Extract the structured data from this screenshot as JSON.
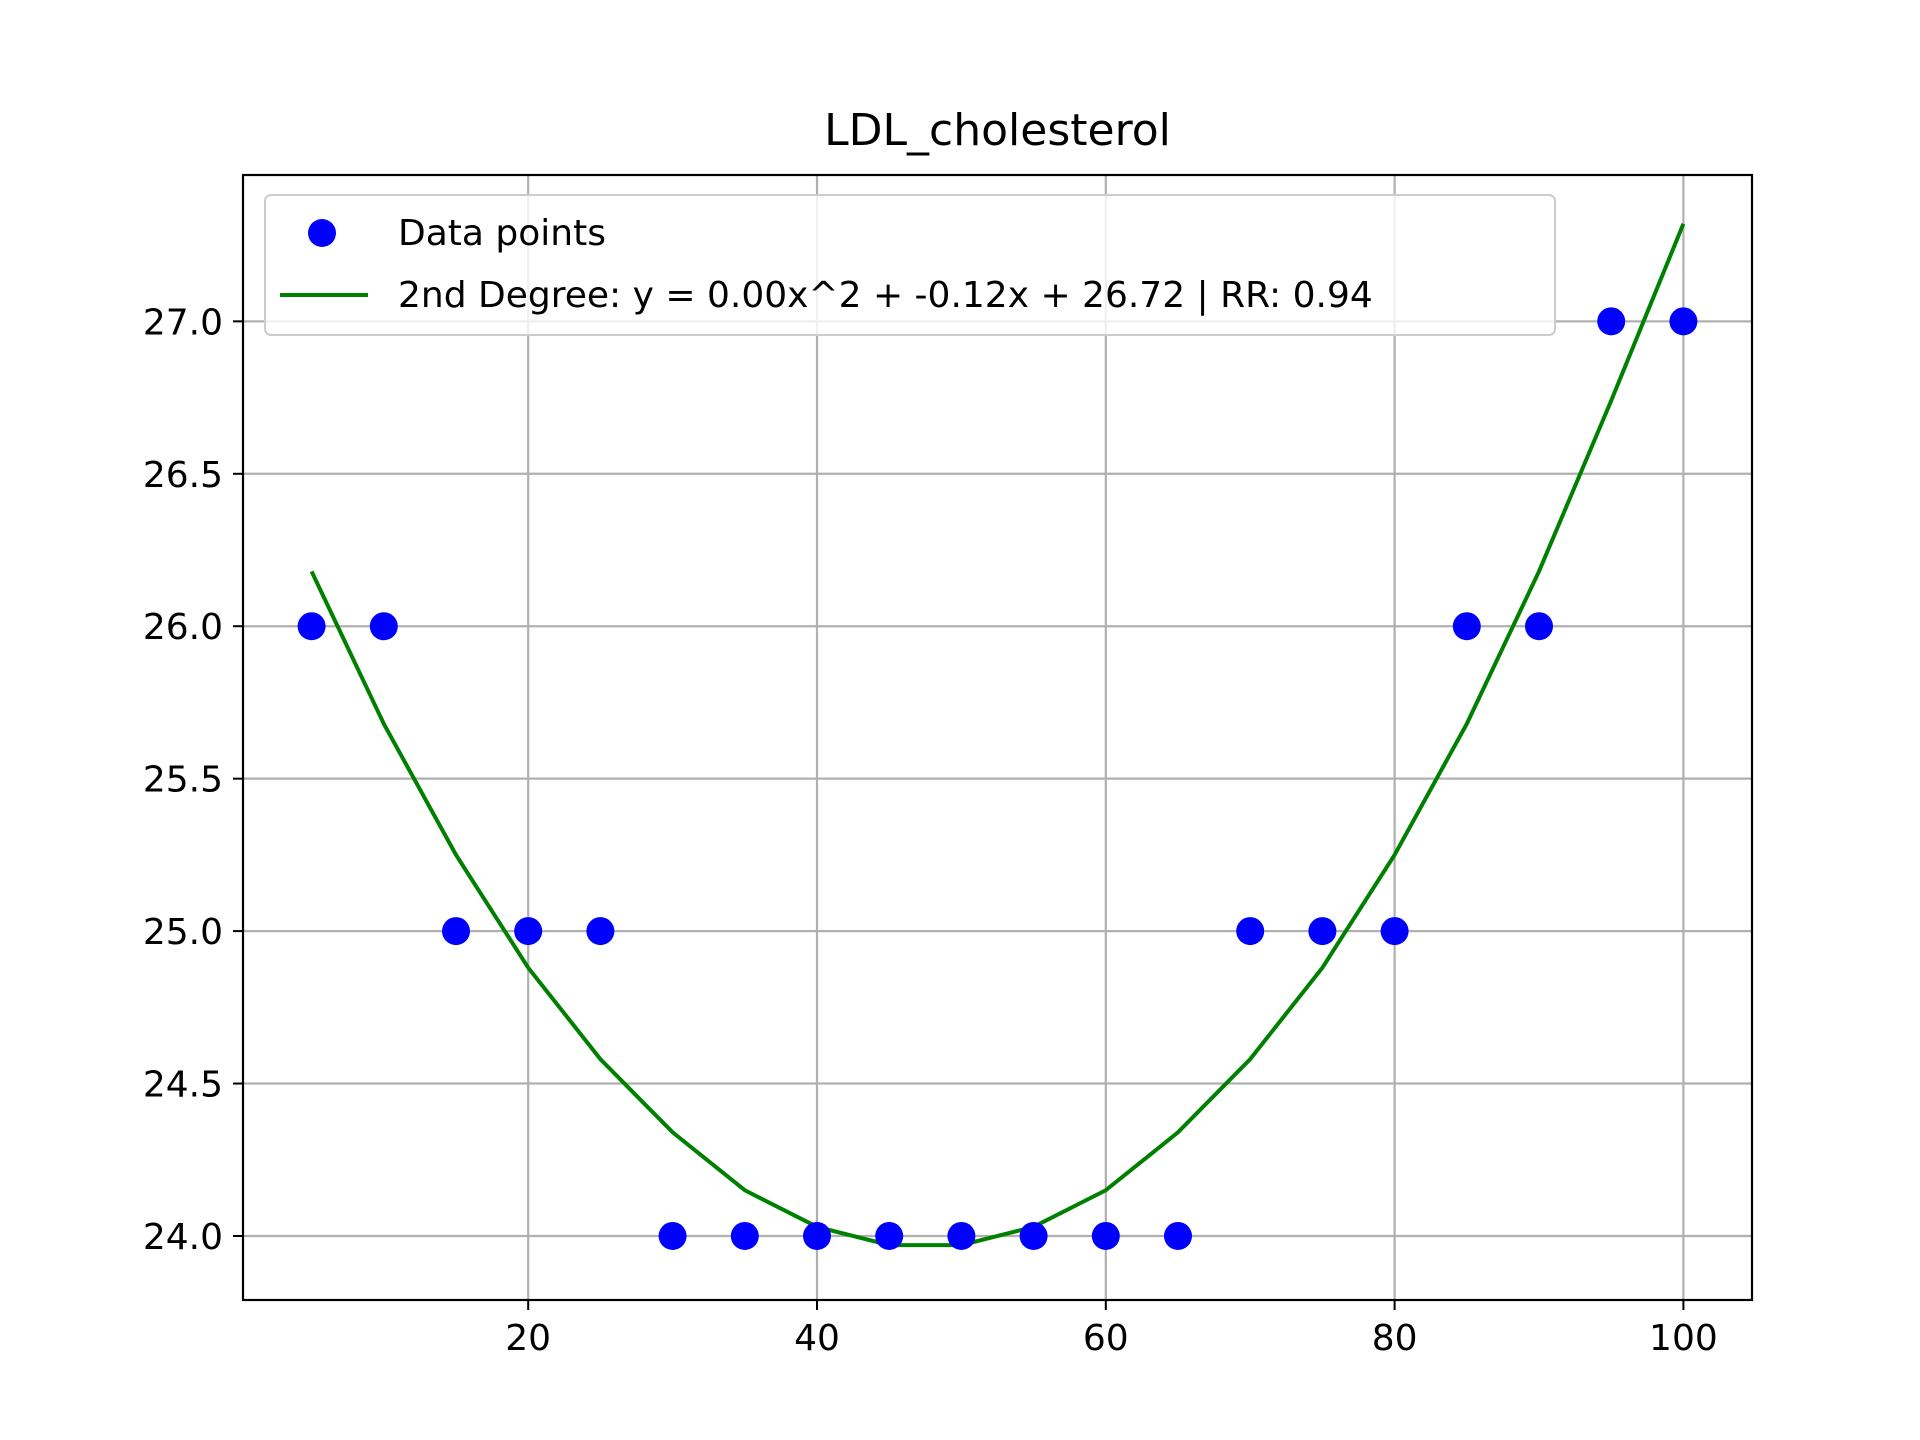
{
  "chart_data": {
    "type": "scatter",
    "title": "LDL_cholesterol",
    "xlabel": "",
    "ylabel": "",
    "xlim": [
      0.25,
      104.75
    ],
    "ylim": [
      23.79,
      27.48
    ],
    "xticks": [
      20,
      40,
      60,
      80,
      100
    ],
    "xtick_labels": [
      "20",
      "40",
      "60",
      "80",
      "100"
    ],
    "yticks": [
      24.0,
      24.5,
      25.0,
      25.5,
      26.0,
      26.5,
      27.0
    ],
    "ytick_labels": [
      "24.0",
      "24.5",
      "25.0",
      "25.5",
      "26.0",
      "26.5",
      "27.0"
    ],
    "grid": true,
    "legend_position": "top-left",
    "series": [
      {
        "name": "Data points",
        "kind": "scatter",
        "color": "#0000ff",
        "x": [
          5,
          10,
          15,
          20,
          25,
          30,
          35,
          40,
          45,
          50,
          55,
          60,
          65,
          70,
          75,
          80,
          85,
          90,
          95,
          100
        ],
        "y": [
          26,
          26,
          25,
          25,
          25,
          24,
          24,
          24,
          24,
          24,
          24,
          24,
          24,
          25,
          25,
          25,
          26,
          26,
          27,
          27
        ]
      },
      {
        "name": "2nd Degree: y = 0.00x^2 + -0.12x + 26.72 | RR: 0.94",
        "kind": "line",
        "color": "#008000",
        "x": [
          5,
          10,
          15,
          20,
          25,
          30,
          35,
          40,
          45,
          50,
          55,
          60,
          65,
          70,
          75,
          80,
          85,
          90,
          95,
          100
        ],
        "y": [
          26.18,
          25.68,
          25.25,
          24.88,
          24.58,
          24.34,
          24.15,
          24.03,
          23.97,
          23.97,
          24.03,
          24.15,
          24.34,
          24.58,
          24.88,
          25.25,
          25.68,
          26.18,
          26.74,
          27.32
        ]
      }
    ]
  }
}
